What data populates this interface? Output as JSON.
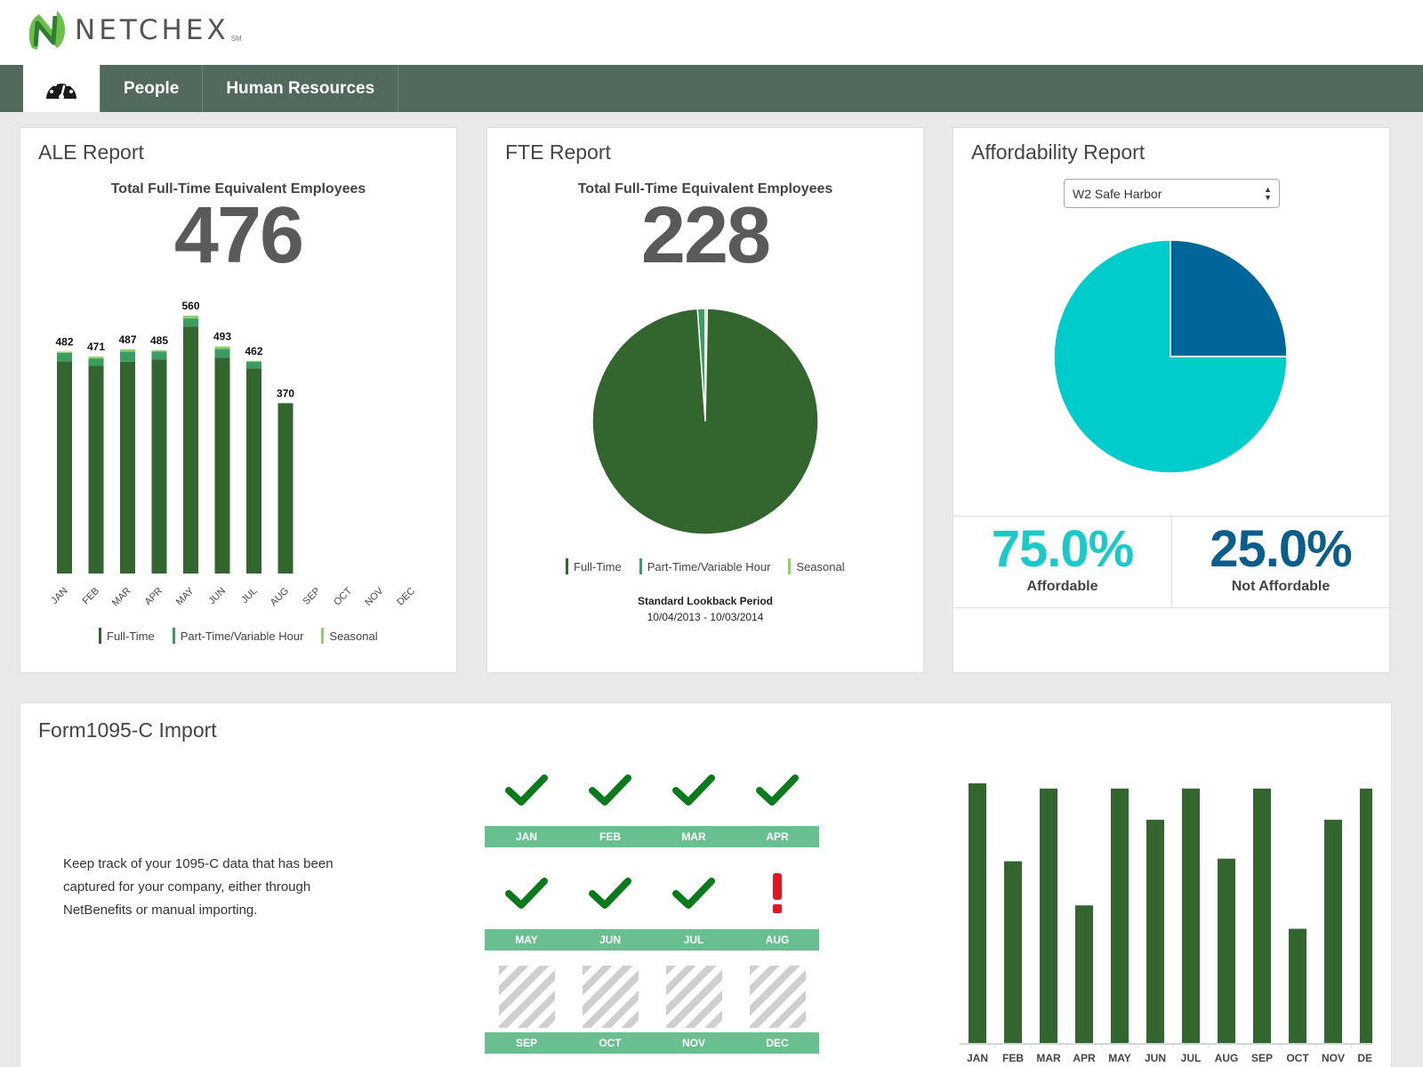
{
  "app": {
    "brand": "NETCHEX",
    "brand_mark": "SM",
    "logo_icon": "netchex-n-logo"
  },
  "nav": {
    "dashboard_icon": "speedometer-icon",
    "items": [
      {
        "label": "People"
      },
      {
        "label": "Human Resources"
      }
    ]
  },
  "ale": {
    "title": "ALE Report",
    "subtitle": "Total Full-Time Equivalent Employees",
    "total": "476",
    "chart_data": {
      "type": "bar",
      "stacked": true,
      "categories": [
        "JAN",
        "FEB",
        "MAR",
        "APR",
        "MAY",
        "JUN",
        "JUL",
        "AUG",
        "SEP",
        "OCT",
        "NOV",
        "DEC"
      ],
      "totals": [
        482,
        471,
        487,
        485,
        560,
        493,
        462,
        370,
        null,
        null,
        null,
        null
      ],
      "series": [
        {
          "name": "Full-Time",
          "color": "#33662f",
          "values": [
            461,
            451,
            460,
            465,
            536,
            469,
            445,
            370,
            null,
            null,
            null,
            null
          ]
        },
        {
          "name": "Part-Time/Variable Hour",
          "color": "#3a9b63",
          "values": [
            18,
            16,
            22,
            17,
            18,
            19,
            15,
            0,
            null,
            null,
            null,
            null
          ]
        },
        {
          "name": "Seasonal",
          "color": "#8fd06a",
          "values": [
            3,
            4,
            5,
            3,
            6,
            5,
            2,
            0,
            null,
            null,
            null,
            null
          ]
        }
      ],
      "ylim": [
        0,
        560
      ]
    }
  },
  "fte": {
    "title": "FTE Report",
    "subtitle": "Total Full-Time Equivalent Employees",
    "total": "228",
    "chart_data": {
      "type": "pie",
      "series": [
        {
          "name": "Full-Time",
          "color": "#33662f",
          "value": 98.6
        },
        {
          "name": "Part-Time/Variable Hour",
          "color": "#3a9b63",
          "value": 1.1
        },
        {
          "name": "Seasonal",
          "color": "#8fd06a",
          "value": 0.3
        }
      ]
    },
    "lookback_title": "Standard Lookback Period",
    "lookback_range": "10/04/2013 - 10/03/2014"
  },
  "affordability": {
    "title": "Affordability Report",
    "select_value": "W2 Safe Harbor",
    "chart_data": {
      "type": "pie",
      "series": [
        {
          "name": "Affordable",
          "color": "#00cccc",
          "value": 75.0
        },
        {
          "name": "Not Affordable",
          "color": "#006699",
          "value": 25.0
        }
      ]
    },
    "affordable_pct": "75.0%",
    "affordable_label": "Affordable",
    "not_affordable_pct": "25.0%",
    "not_affordable_label": "Not Affordable"
  },
  "form1095": {
    "title": "Form1095-C Import",
    "description": "Keep track of your 1095-C data that has been captured for your company, either through NetBenefits or manual importing.",
    "months": [
      {
        "label": "JAN",
        "status": "complete"
      },
      {
        "label": "FEB",
        "status": "complete"
      },
      {
        "label": "MAR",
        "status": "complete"
      },
      {
        "label": "APR",
        "status": "complete"
      },
      {
        "label": "MAY",
        "status": "complete"
      },
      {
        "label": "JUN",
        "status": "complete"
      },
      {
        "label": "JUL",
        "status": "complete"
      },
      {
        "label": "AUG",
        "status": "warning"
      },
      {
        "label": "SEP",
        "status": "pending"
      },
      {
        "label": "OCT",
        "status": "pending"
      },
      {
        "label": "NOV",
        "status": "pending"
      },
      {
        "label": "DEC",
        "status": "pending"
      }
    ],
    "chart_data": {
      "type": "bar",
      "categories": [
        "JAN",
        "FEB",
        "MAR",
        "APR",
        "MAY",
        "JUN",
        "JUL",
        "AUG",
        "SEP",
        "OCT",
        "NOV",
        "DEC"
      ],
      "values": [
        100,
        70,
        98,
        53,
        98,
        86,
        98,
        71,
        98,
        44,
        86,
        98
      ],
      "color": "#33662f"
    }
  }
}
